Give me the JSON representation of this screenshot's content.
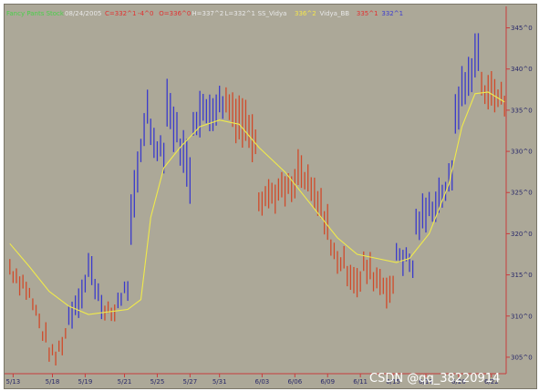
{
  "header": {
    "symbol": "Fancy Pants Stock",
    "date": "08/24/2005",
    "items": [
      {
        "text": "C=332^1",
        "color": "#e23030"
      },
      {
        "text": "-4^0",
        "color": "#e23030"
      },
      {
        "text": "O=336^0",
        "color": "#e23030"
      },
      {
        "text": "H=337^2",
        "color": "#e8e8e8"
      },
      {
        "text": "L=332^1",
        "color": "#e8e8e8"
      },
      {
        "text": "SS_Vidya",
        "color": "#e8e8e8"
      },
      {
        "text": "336^2",
        "color": "#f4e64c"
      },
      {
        "text": "Vidya_BB",
        "color": "#e8e8e8"
      },
      {
        "text": "335^1",
        "color": "#e23030"
      },
      {
        "text": "332^1",
        "color": "#3b3bd0"
      }
    ]
  },
  "watermark": "CSDN @qq_38220914",
  "colors": {
    "up": "#3a3acc",
    "down": "#d04a2a",
    "line": "#f0ea4a",
    "axis": "#c83c3c"
  },
  "chart_data": {
    "type": "bar",
    "y_ticks": [
      "345^0",
      "340^0",
      "335^0",
      "330^0",
      "325^0",
      "320^0",
      "315^0",
      "310^0",
      "305^0"
    ],
    "y_tick_values": [
      345,
      340,
      335,
      330,
      325,
      320,
      315,
      310,
      305
    ],
    "x_ticks": [
      "5/13",
      "5/18",
      "5/19",
      "5/21",
      "5/25",
      "5/27",
      "5/31",
      "6/03",
      "6/06",
      "6/09",
      "6/11",
      "6/15",
      "6/17",
      "6/20",
      "6/22"
    ],
    "x_tick_index": [
      1,
      13,
      23,
      35,
      45,
      55,
      64,
      77,
      87,
      97,
      107,
      117,
      127,
      137,
      147
    ],
    "ylim": [
      303,
      346.5
    ],
    "n_bars": 152,
    "segments": [
      {
        "n": 6,
        "from": 316.0,
        "to": 313.5,
        "color": "down",
        "range": 2.0
      },
      {
        "n": 8,
        "from": 312.5,
        "to": 305.0,
        "color": "down",
        "range": 2.0
      },
      {
        "n": 4,
        "from": 305.0,
        "to": 308.0,
        "color": "down",
        "range": 1.8
      },
      {
        "n": 6,
        "from": 310.0,
        "to": 314.0,
        "color": "up",
        "range": 3.0
      },
      {
        "n": 5,
        "from": 316.0,
        "to": 312.0,
        "color": "up",
        "range": 3.5
      },
      {
        "n": 4,
        "from": 310.0,
        "to": 310.5,
        "color": "down",
        "range": 1.8
      },
      {
        "n": 4,
        "from": 312.0,
        "to": 313.5,
        "color": "up",
        "range": 2.2
      },
      {
        "n": 6,
        "from": 321.0,
        "to": 336.0,
        "color": "up",
        "range": 5.0
      },
      {
        "n": 5,
        "from": 332.0,
        "to": 330.0,
        "color": "up",
        "range": 3.0
      },
      {
        "n": 8,
        "from": 336.0,
        "to": 327.0,
        "color": "up",
        "range": 5.0
      },
      {
        "n": 10,
        "from": 334.0,
        "to": 336.0,
        "color": "up",
        "range": 5.0
      },
      {
        "n": 10,
        "from": 336.0,
        "to": 332.0,
        "color": "down",
        "range": 5.0
      },
      {
        "n": 12,
        "from": 324.5,
        "to": 325.5,
        "color": "down",
        "range": 3.0
      },
      {
        "n": 10,
        "from": 328.0,
        "to": 321.5,
        "color": "down",
        "range": 3.5
      },
      {
        "n": 10,
        "from": 318.0,
        "to": 314.0,
        "color": "down",
        "range": 3.0
      },
      {
        "n": 10,
        "from": 316.0,
        "to": 313.0,
        "color": "down",
        "range": 3.5
      },
      {
        "n": 6,
        "from": 318.0,
        "to": 316.0,
        "color": "up",
        "range": 3.0
      },
      {
        "n": 12,
        "from": 321.0,
        "to": 326.5,
        "color": "up",
        "range": 3.5
      },
      {
        "n": 8,
        "from": 335.0,
        "to": 342.0,
        "color": "up",
        "range": 5.0
      },
      {
        "n": 8,
        "from": 338.0,
        "to": 336.0,
        "color": "down",
        "range": 3.5
      }
    ],
    "vidya_line": [
      [
        0,
        318.8
      ],
      [
        6,
        316.0
      ],
      [
        12,
        313.0
      ],
      [
        18,
        311.2
      ],
      [
        24,
        310.2
      ],
      [
        30,
        310.5
      ],
      [
        36,
        310.8
      ],
      [
        40,
        312.0
      ],
      [
        43,
        322.0
      ],
      [
        47,
        328.0
      ],
      [
        52,
        330.5
      ],
      [
        58,
        333.0
      ],
      [
        64,
        333.8
      ],
      [
        70,
        333.3
      ],
      [
        76,
        330.5
      ],
      [
        84,
        327.5
      ],
      [
        92,
        323.5
      ],
      [
        100,
        319.5
      ],
      [
        106,
        317.5
      ],
      [
        112,
        317.0
      ],
      [
        118,
        316.5
      ],
      [
        122,
        317.0
      ],
      [
        128,
        320.0
      ],
      [
        134,
        326.0
      ],
      [
        138,
        333.0
      ],
      [
        142,
        337.0
      ],
      [
        146,
        337.2
      ],
      [
        151,
        336.0
      ]
    ]
  }
}
